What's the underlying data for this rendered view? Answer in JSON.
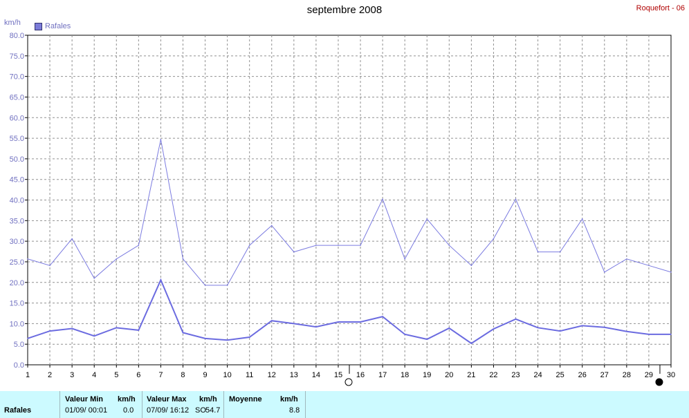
{
  "header": {
    "title": "septembre 2008",
    "station": "Roquefort - 06",
    "unit": "km/h",
    "legend": "Rafales"
  },
  "chart_data": {
    "type": "line",
    "x": [
      1,
      2,
      3,
      4,
      5,
      6,
      7,
      8,
      9,
      10,
      11,
      12,
      13,
      14,
      15,
      16,
      17,
      18,
      19,
      20,
      21,
      22,
      23,
      24,
      25,
      26,
      27,
      28,
      29,
      30
    ],
    "ylim": [
      0,
      80
    ],
    "yticks": [
      "0.0",
      "5.0",
      "10.0",
      "15.0",
      "20.0",
      "25.0",
      "30.0",
      "35.0",
      "40.0",
      "45.0",
      "50.0",
      "55.0",
      "60.0",
      "65.0",
      "70.0",
      "75.0",
      "80.0"
    ],
    "xticks": [
      "1",
      "2",
      "3",
      "4",
      "5",
      "6",
      "7",
      "8",
      "9",
      "10",
      "11",
      "12",
      "13",
      "14",
      "15",
      "16",
      "17",
      "18",
      "19",
      "20",
      "21",
      "22",
      "23",
      "24",
      "25",
      "26",
      "27",
      "28",
      "29",
      "30"
    ],
    "ylabel": "km/h",
    "grid": true,
    "legend_position": "top-left",
    "series": [
      {
        "name": "Rafales",
        "color": "#7b7be0",
        "values": [
          25.7,
          24.1,
          30.6,
          21.0,
          25.7,
          29.0,
          54.7,
          25.7,
          19.3,
          19.3,
          29.0,
          33.8,
          27.4,
          29.0,
          29.0,
          29.0,
          40.2,
          25.7,
          35.4,
          29.0,
          24.1,
          30.6,
          40.2,
          27.4,
          27.4,
          35.4,
          22.5,
          25.7,
          24.1,
          22.5
        ]
      },
      {
        "color": "#6b6be0",
        "values": [
          6.4,
          8.2,
          8.8,
          7.0,
          9.0,
          8.4,
          20.6,
          7.8,
          6.4,
          6.0,
          6.7,
          10.7,
          10.0,
          9.2,
          10.4,
          10.4,
          11.7,
          7.4,
          6.2,
          8.9,
          5.2,
          8.7,
          11.1,
          9.0,
          8.2,
          9.5,
          9.1,
          8.1,
          7.4,
          7.4
        ]
      }
    ],
    "markers": [
      {
        "name": "new-moon-icon",
        "x": 15.5
      },
      {
        "name": "full-moon-icon",
        "x": 29.5
      }
    ]
  },
  "summary": {
    "row_label": "Rafales",
    "min_header": "Valeur Min",
    "min_unit": "km/h",
    "min_datetime": "01/09/  00:01",
    "min_value": "0.0",
    "max_header": "Valeur Max",
    "max_unit": "km/h",
    "max_datetime": "07/09/  16:12",
    "max_dir": "SO",
    "max_value": "54.7",
    "avg_header": "Moyenne",
    "avg_unit": "km/h",
    "avg_value": "8.8"
  }
}
